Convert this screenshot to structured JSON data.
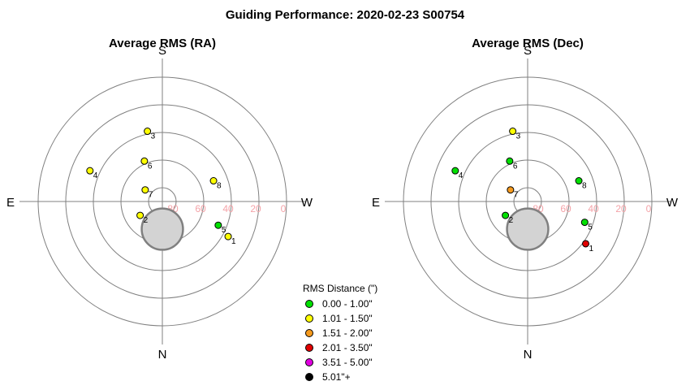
{
  "title": "Guiding Performance: 2020-02-23 S00754",
  "compass": {
    "top": "S",
    "bottom": "N",
    "left": "E",
    "right": "W"
  },
  "ring_labels": [
    "80",
    "60",
    "40",
    "20",
    "0"
  ],
  "legend": {
    "title": "RMS Distance (\")",
    "items": [
      {
        "label": "0.00 - 1.00\"",
        "color": "#00e000"
      },
      {
        "label": "1.01 - 1.50\"",
        "color": "#ffff00"
      },
      {
        "label": "1.51 - 2.00\"",
        "color": "#f59a1e"
      },
      {
        "label": "2.01 - 3.50\"",
        "color": "#e00000"
      },
      {
        "label": "3.51 - 5.00\"",
        "color": "#e000e0"
      },
      {
        "label": "5.01\"+",
        "color": "#000000"
      }
    ]
  },
  "chart_data": [
    {
      "type": "scatter",
      "projection": "polar-altitude",
      "title": "Average RMS (RA)",
      "altitude_range": [
        90,
        0
      ],
      "obstruction": {
        "azimuth": 0,
        "altitude": 70,
        "radius_deg": 17
      },
      "points": [
        {
          "label": "1",
          "azimuth": 298,
          "altitude": 36,
          "category": "1.01 - 1.50\""
        },
        {
          "label": "2",
          "azimuth": 58,
          "altitude": 71,
          "category": "1.01 - 1.50\""
        },
        {
          "label": "3",
          "azimuth": 168,
          "altitude": 38,
          "category": "1.01 - 1.50\""
        },
        {
          "label": "4",
          "azimuth": 113,
          "altitude": 33,
          "category": "1.01 - 1.50\""
        },
        {
          "label": "5",
          "azimuth": 293,
          "altitude": 46,
          "category": "0.00 - 1.00\""
        },
        {
          "label": "6",
          "azimuth": 156,
          "altitude": 58,
          "category": "1.01 - 1.50\""
        },
        {
          "label": "7",
          "azimuth": 124,
          "altitude": 75,
          "category": "1.01 - 1.50\""
        },
        {
          "label": "8",
          "azimuth": 248,
          "altitude": 50,
          "category": "1.01 - 1.50\""
        }
      ]
    },
    {
      "type": "scatter",
      "projection": "polar-altitude",
      "title": "Average RMS (Dec)",
      "altitude_range": [
        90,
        0
      ],
      "obstruction": {
        "azimuth": 0,
        "altitude": 70,
        "radius_deg": 17
      },
      "points": [
        {
          "label": "1",
          "azimuth": 306,
          "altitude": 38,
          "category": "2.01 - 3.50\""
        },
        {
          "label": "2",
          "azimuth": 58,
          "altitude": 71,
          "category": "0.00 - 1.00\""
        },
        {
          "label": "3",
          "azimuth": 168,
          "altitude": 38,
          "category": "1.01 - 1.50\""
        },
        {
          "label": "4",
          "azimuth": 113,
          "altitude": 33,
          "category": "0.00 - 1.00\""
        },
        {
          "label": "5",
          "azimuth": 290,
          "altitude": 46,
          "category": "0.00 - 1.00\""
        },
        {
          "label": "6",
          "azimuth": 156,
          "altitude": 58,
          "category": "0.00 - 1.00\""
        },
        {
          "label": "7",
          "azimuth": 124,
          "altitude": 75,
          "category": "1.51 - 2.00\""
        },
        {
          "label": "8",
          "azimuth": 248,
          "altitude": 50,
          "category": "0.00 - 1.00\""
        }
      ]
    }
  ]
}
